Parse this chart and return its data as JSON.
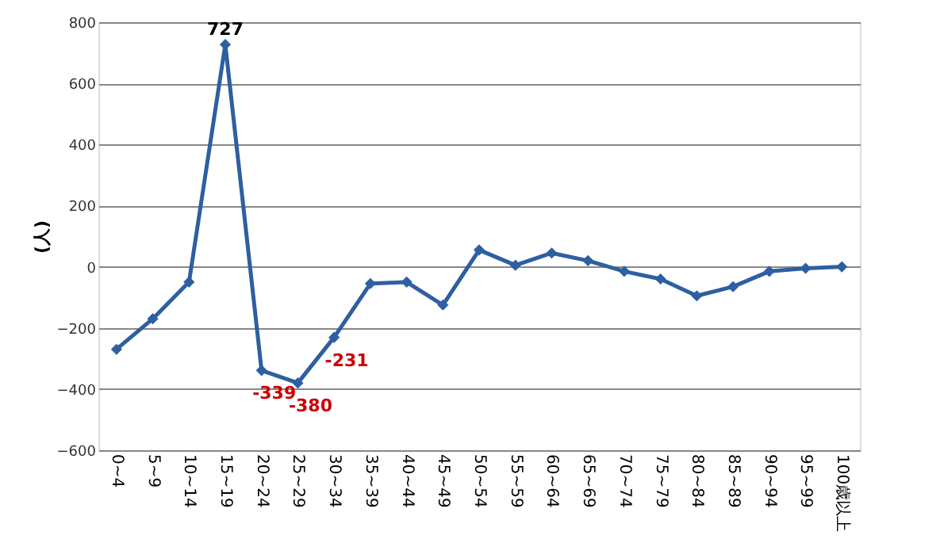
{
  "chart_data": {
    "type": "line",
    "ylabel": "(人)",
    "categories": [
      "0~4",
      "5~9",
      "10~14",
      "15~19",
      "20~24",
      "25~29",
      "30~34",
      "35~39",
      "40~44",
      "45~49",
      "50~54",
      "55~59",
      "60~64",
      "65~69",
      "70~74",
      "75~79",
      "80~84",
      "85~89",
      "90~94",
      "95~99",
      "100歳以上"
    ],
    "series": [
      {
        "color": "#2e5fa0",
        "values": [
          -270,
          -170,
          -50,
          727,
          -339,
          -380,
          -231,
          -55,
          -50,
          -125,
          55,
          5,
          45,
          20,
          -15,
          -40,
          -95,
          -65,
          -15,
          -5,
          0
        ],
        "value_labels": [
          null,
          null,
          null,
          "727",
          "-339",
          "-380",
          "-231",
          null,
          null,
          null,
          null,
          null,
          null,
          null,
          null,
          null,
          null,
          null,
          null,
          null,
          null
        ]
      }
    ],
    "ylim": [
      -600,
      800
    ],
    "yticks": [
      -600,
      -400,
      -200,
      0,
      200,
      400,
      600,
      800
    ],
    "grid": "y",
    "marker": "diamond",
    "line_style": "solid",
    "legend": false
  }
}
